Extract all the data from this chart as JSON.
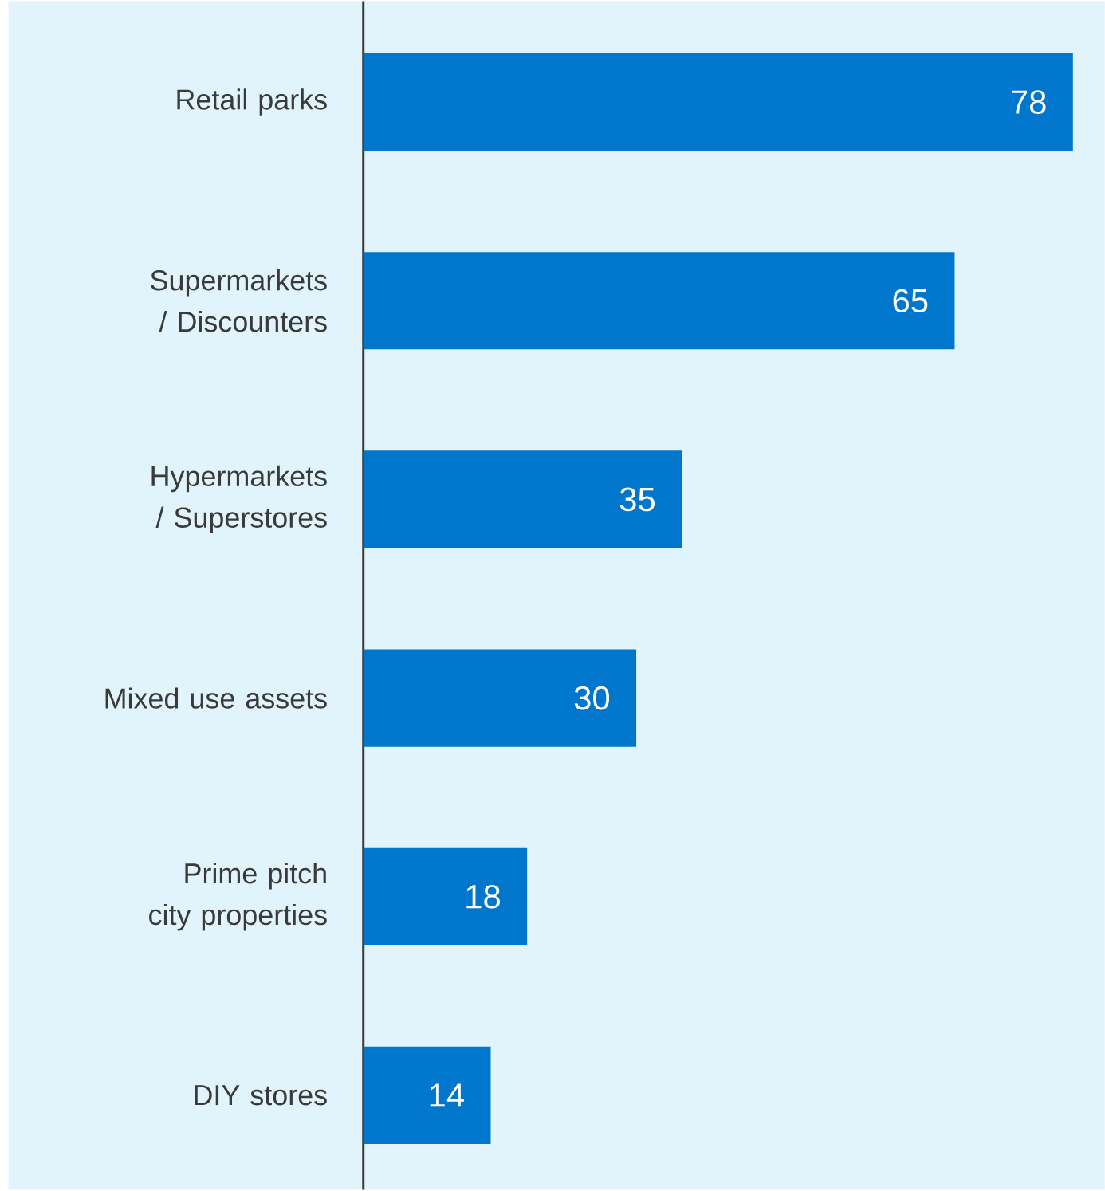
{
  "chart_data": {
    "type": "bar",
    "orientation": "horizontal",
    "categories": [
      "Retail parks",
      "Supermarkets / Discounters",
      "Hypermarkets / Superstores",
      "Mixed use assets",
      "Prime pitch city properties",
      "DIY stores"
    ],
    "values": [
      78,
      65,
      35,
      30,
      18,
      14
    ],
    "color": "#0077cc",
    "data_labels": true
  }
}
